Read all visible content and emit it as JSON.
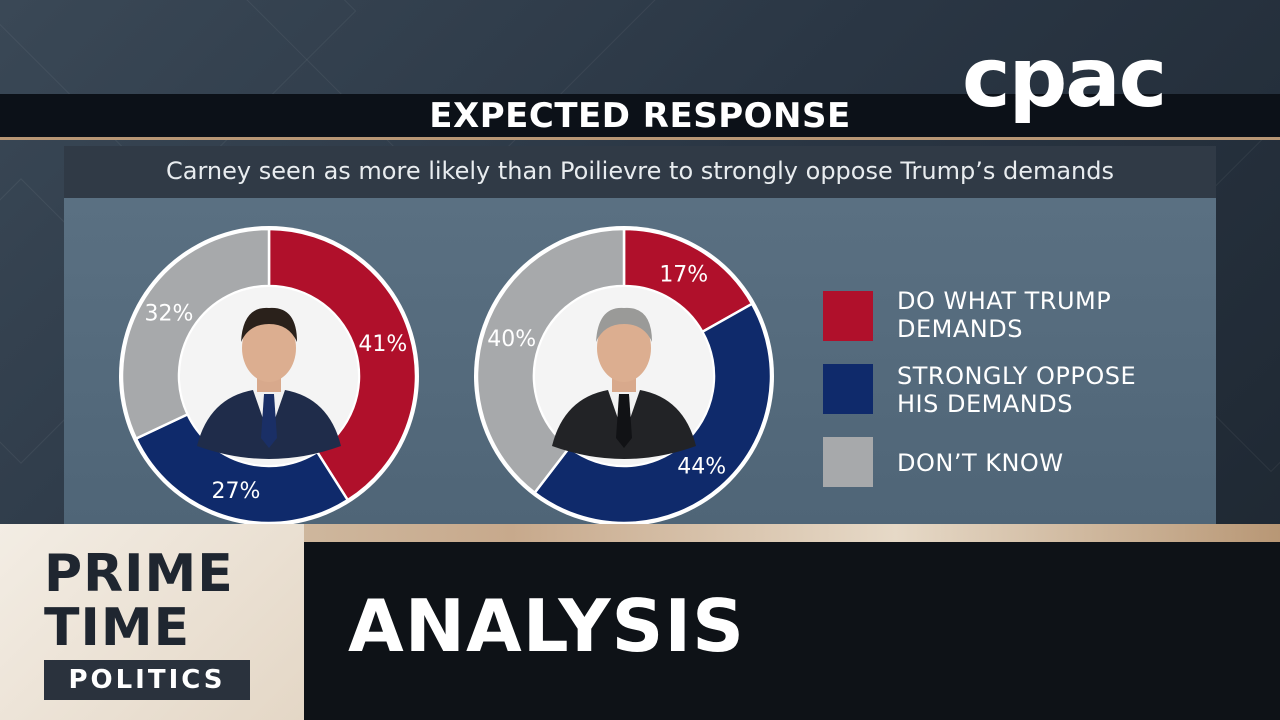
{
  "header": {
    "title": "EXPECTED RESPONSE",
    "subtitle": "Carney seen as more likely than Poilievre to strongly oppose Trump’s demands"
  },
  "logo": "cpac",
  "colors": {
    "demands": "#b0102b",
    "oppose": "#0f2a6b",
    "dont_know": "#a7a9ab"
  },
  "chart_data": {
    "type": "pie",
    "variant": "donut",
    "series_labels": [
      "DO WHAT TRUMP DEMANDS",
      "STRONGLY OPPOSE HIS DEMANDS",
      "DON’T KNOW"
    ],
    "charts": [
      {
        "center_image": "man-in-suit-portrait",
        "slices": [
          {
            "label": "DO WHAT TRUMP DEMANDS",
            "value": 41,
            "text": "41%"
          },
          {
            "label": "STRONGLY OPPOSE HIS DEMANDS",
            "value": 27,
            "text": "27%"
          },
          {
            "label": "DON’T KNOW",
            "value": 32,
            "text": "32%"
          }
        ]
      },
      {
        "center_image": "man-in-suit-portrait",
        "slices": [
          {
            "label": "DO WHAT TRUMP DEMANDS",
            "value": 17,
            "text": "17%"
          },
          {
            "label": "STRONGLY OPPOSE HIS DEMANDS",
            "value": 44,
            "text": "44%"
          },
          {
            "label": "DON’T KNOW",
            "value": 40,
            "text": "40%"
          }
        ]
      }
    ]
  },
  "legend": [
    {
      "line1": "DO WHAT TRUMP",
      "line2": "DEMANDS",
      "color_key": "demands"
    },
    {
      "line1": "STRONGLY OPPOSE",
      "line2": "HIS DEMANDS",
      "color_key": "oppose"
    },
    {
      "line1": "DON’T KNOW",
      "line2": "",
      "color_key": "dont_know"
    }
  ],
  "lower_third": {
    "brand_line1": "PRIME",
    "brand_line2": "TIME",
    "brand_line3": "POLITICS",
    "headline": "ANALYSIS"
  }
}
